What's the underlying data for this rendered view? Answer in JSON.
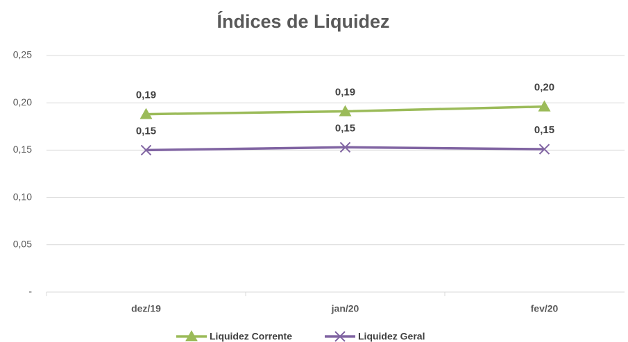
{
  "chart_data": {
    "type": "line",
    "title": "Índices de Liquidez",
    "categories": [
      "dez/19",
      "jan/20",
      "fev/20"
    ],
    "series": [
      {
        "name": "Liquidez Corrente",
        "color": "#9bbb59",
        "marker": "triangle",
        "values": [
          0.188,
          0.191,
          0.196
        ],
        "value_labels": [
          "0,19",
          "0,19",
          "0,20"
        ]
      },
      {
        "name": "Liquidez Geral",
        "color": "#8064a2",
        "marker": "x",
        "values": [
          0.15,
          0.153,
          0.151
        ],
        "value_labels": [
          "0,15",
          "0,15",
          "0,15"
        ]
      }
    ],
    "ylim": [
      0,
      0.25
    ],
    "yticks": [
      {
        "value": 0,
        "label": "-"
      },
      {
        "value": 0.05,
        "label": "0,05"
      },
      {
        "value": 0.1,
        "label": "0,10"
      },
      {
        "value": 0.15,
        "label": "0,15"
      },
      {
        "value": 0.2,
        "label": "0,20"
      },
      {
        "value": 0.25,
        "label": "0,25"
      }
    ],
    "grid": true,
    "legend": "bottom"
  }
}
